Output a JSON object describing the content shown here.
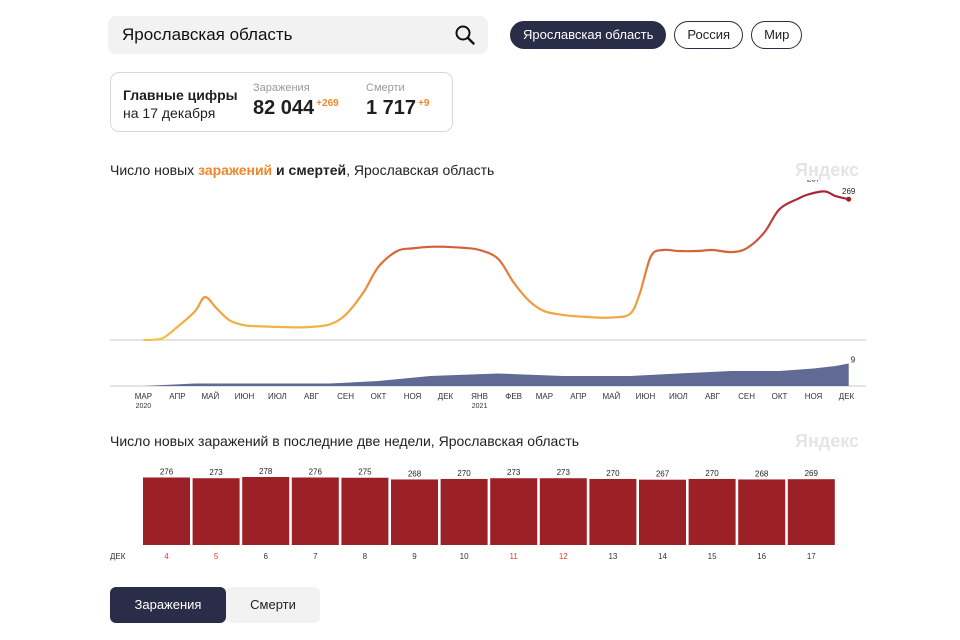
{
  "search": {
    "value": "Ярославская область"
  },
  "region_tabs": [
    {
      "label": "Ярославская область",
      "active": true
    },
    {
      "label": "Россия",
      "active": false
    },
    {
      "label": "Мир",
      "active": false
    }
  ],
  "main_figures": {
    "title_line1": "Главные цифры",
    "title_line2": "на 17 декабря",
    "infections_label": "Заражения",
    "infections_value": "82 044",
    "infections_delta": "+269",
    "deaths_label": "Смерти",
    "deaths_value": "1 717",
    "deaths_delta": "+9"
  },
  "watermark": "Яндекс",
  "trend_chart": {
    "title_prefix": "Число новых ",
    "title_hl": "заражений",
    "title_mid": " и смертей",
    "title_suffix": ", Ярославская область"
  },
  "bar_chart": {
    "title": "Число новых заражений в последние две недели, Ярославская область",
    "month_label": "ДЕК"
  },
  "bottom_tabs": [
    {
      "label": "Заражения",
      "active": true
    },
    {
      "label": "Смерти",
      "active": false
    }
  ],
  "colors": {
    "accent": "#f0862a",
    "bar": "#9b2126",
    "dark": "#2a2d47",
    "deaths_area": "#4f5a88",
    "weekend": "#e03a2f"
  },
  "chart_data": [
    {
      "type": "line",
      "title": "Число новых заражений и смертей, Ярославская область",
      "series": [
        {
          "name": "заражения",
          "x": [
            "2020-03-15",
            "2020-04-01",
            "2020-04-15",
            "2020-05-01",
            "2020-05-10",
            "2020-05-20",
            "2020-06-01",
            "2020-06-15",
            "2020-07-01",
            "2020-07-15",
            "2020-08-01",
            "2020-08-15",
            "2020-09-01",
            "2020-09-15",
            "2020-10-01",
            "2020-10-15",
            "2020-11-01",
            "2020-11-15",
            "2020-12-01",
            "2020-12-15",
            "2021-01-01",
            "2021-01-15",
            "2021-02-01",
            "2021-02-15",
            "2021-03-01",
            "2021-03-15",
            "2021-04-01",
            "2021-04-15",
            "2021-05-01",
            "2021-05-15",
            "2021-06-01",
            "2021-06-10",
            "2021-06-20",
            "2021-07-01",
            "2021-07-15",
            "2021-08-01",
            "2021-08-15",
            "2021-09-01",
            "2021-09-15",
            "2021-10-01",
            "2021-10-15",
            "2021-11-01",
            "2021-11-10",
            "2021-11-25",
            "2021-12-05",
            "2021-12-17"
          ],
          "values": [
            0,
            3,
            25,
            55,
            82,
            62,
            38,
            28,
            26,
            25,
            24,
            25,
            30,
            48,
            90,
            140,
            170,
            175,
            178,
            178,
            176,
            172,
            155,
            110,
            75,
            55,
            48,
            45,
            43,
            43,
            50,
            90,
            160,
            172,
            170,
            170,
            172,
            168,
            175,
            205,
            250,
            270,
            278,
            284,
            275,
            269
          ]
        },
        {
          "name": "смерти",
          "x": [
            "2020-03-15",
            "2020-05-01",
            "2020-07-01",
            "2020-09-01",
            "2020-10-15",
            "2020-12-01",
            "2021-02-01",
            "2021-04-01",
            "2021-06-01",
            "2021-07-15",
            "2021-09-01",
            "2021-10-15",
            "2021-11-15",
            "2021-12-05",
            "2021-12-17"
          ],
          "values": [
            0,
            1,
            1,
            1,
            2,
            4,
            5,
            4,
            4,
            5,
            6,
            6,
            7,
            8,
            9
          ]
        }
      ],
      "annotations": [
        "287",
        "269",
        "9"
      ],
      "x_ticks": [
        "МАР",
        "АПР",
        "МАЙ",
        "ИЮН",
        "ИЮЛ",
        "АВГ",
        "СЕН",
        "ОКТ",
        "НОЯ",
        "ДЕК",
        "ЯНВ",
        "ФЕВ",
        "МАР",
        "АПР",
        "МАЙ",
        "ИЮН",
        "ИЮЛ",
        "АВГ",
        "СЕН",
        "ОКТ",
        "НОЯ",
        "ДЕК"
      ],
      "year_labels": [
        "2020",
        "2021"
      ]
    },
    {
      "type": "bar",
      "title": "Число новых заражений в последние две недели, Ярославская область",
      "categories": [
        "4",
        "5",
        "6",
        "7",
        "8",
        "9",
        "10",
        "11",
        "12",
        "13",
        "14",
        "15",
        "16",
        "17"
      ],
      "values": [
        276,
        273,
        278,
        276,
        275,
        268,
        270,
        273,
        273,
        270,
        267,
        270,
        268,
        269
      ],
      "weekend": [
        true,
        true,
        false,
        false,
        false,
        false,
        false,
        true,
        true,
        false,
        false,
        false,
        false,
        false
      ]
    }
  ]
}
